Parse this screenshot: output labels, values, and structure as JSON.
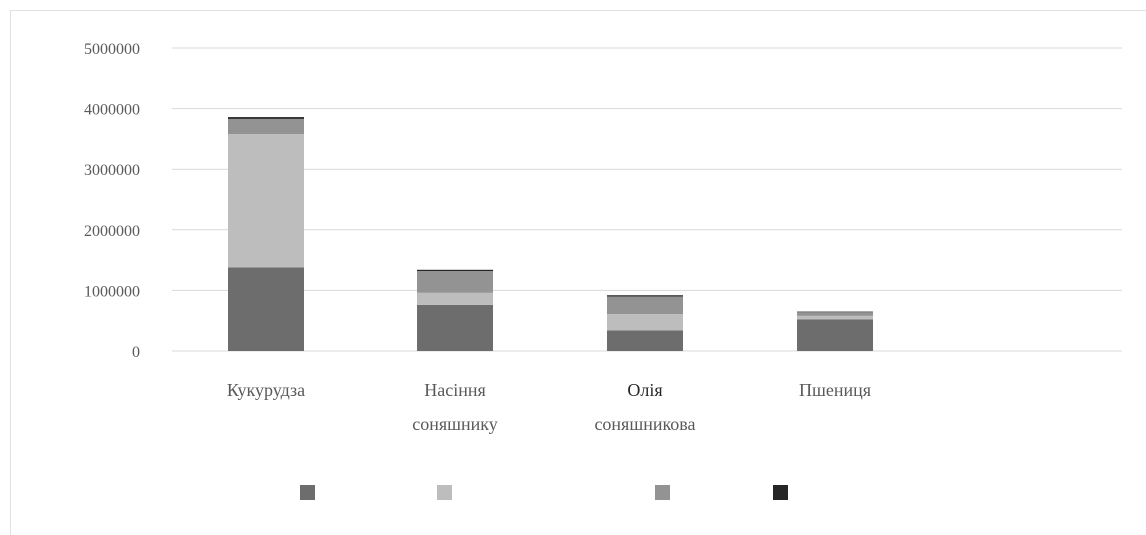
{
  "chart_data": {
    "type": "bar",
    "stacked": true,
    "categories": [
      [
        "Кукурудза"
      ],
      [
        "Насіння",
        "соняшнику"
      ],
      [
        "Олія",
        "соняшникова"
      ],
      [
        "Пшениця"
      ]
    ],
    "series": [
      {
        "color": "#6d6d6d",
        "values": [
          1380000,
          760000,
          340000,
          520000
        ]
      },
      {
        "color": "#bdbdbd",
        "values": [
          2200000,
          200000,
          270000,
          60000
        ]
      },
      {
        "color": "#939393",
        "values": [
          250000,
          360000,
          290000,
          60000
        ]
      },
      {
        "color": "#262626",
        "values": [
          30000,
          20000,
          20000,
          10000
        ]
      }
    ],
    "ylim": [
      0,
      5000000
    ],
    "yticks": [
      "0",
      "1000000",
      "2000000",
      "3000000",
      "4000000",
      "5000000"
    ],
    "grid": true,
    "legend_position": "bottom",
    "title": "",
    "xlabel": "",
    "ylabel": ""
  }
}
